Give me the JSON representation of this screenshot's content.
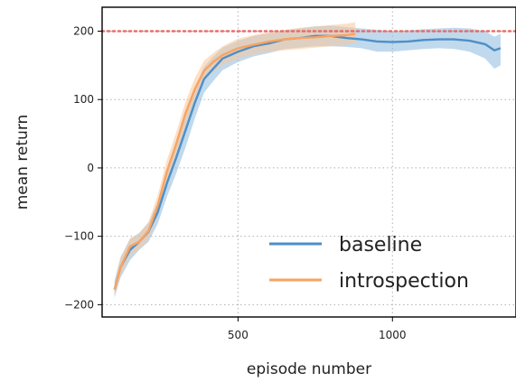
{
  "chart_data": {
    "type": "line",
    "xlabel": "episode number",
    "ylabel": "mean return",
    "xlim": [
      60,
      1400
    ],
    "ylim": [
      -218,
      235
    ],
    "xticks": [
      500,
      1000
    ],
    "yticks": [
      -200,
      -100,
      0,
      100,
      200
    ],
    "grid": true,
    "legend_position": "lower-right",
    "reference_line": {
      "y": 200,
      "color": "#e8625f",
      "style": "dotted"
    },
    "series": [
      {
        "name": "baseline",
        "color": "#4d8fc7",
        "band_color": "#8db9df",
        "x": [
          100,
          120,
          150,
          180,
          210,
          240,
          270,
          300,
          330,
          360,
          390,
          420,
          450,
          500,
          550,
          600,
          650,
          700,
          750,
          800,
          850,
          900,
          950,
          1000,
          1050,
          1100,
          1150,
          1200,
          1250,
          1300,
          1330,
          1350
        ],
        "y": [
          -178,
          -145,
          -120,
          -108,
          -93,
          -65,
          -22,
          15,
          55,
          95,
          130,
          145,
          160,
          170,
          178,
          182,
          188,
          190,
          193,
          193,
          190,
          188,
          185,
          184,
          185,
          187,
          188,
          188,
          186,
          181,
          172,
          175
        ],
        "lower": [
          -190,
          -160,
          -135,
          -120,
          -108,
          -82,
          -42,
          -8,
          30,
          72,
          110,
          127,
          143,
          155,
          163,
          168,
          174,
          176,
          178,
          178,
          177,
          175,
          170,
          170,
          172,
          174,
          175,
          174,
          170,
          160,
          145,
          150
        ],
        "upper": [
          -165,
          -130,
          -104,
          -95,
          -80,
          -50,
          -5,
          35,
          76,
          115,
          148,
          163,
          176,
          186,
          193,
          197,
          201,
          204,
          207,
          208,
          206,
          204,
          202,
          200,
          201,
          203,
          204,
          205,
          204,
          200,
          192,
          196
        ]
      },
      {
        "name": "introspection",
        "color": "#f9a360",
        "band_color": "#f8c79b",
        "x": [
          100,
          120,
          150,
          180,
          210,
          240,
          270,
          300,
          330,
          360,
          390,
          420,
          450,
          500,
          550,
          600,
          650,
          700,
          750,
          800,
          850,
          880
        ],
        "y": [
          -178,
          -145,
          -115,
          -108,
          -92,
          -55,
          -5,
          35,
          80,
          115,
          142,
          155,
          165,
          175,
          180,
          185,
          188,
          190,
          191,
          193,
          194,
          196
        ],
        "lower": [
          -188,
          -158,
          -128,
          -120,
          -105,
          -70,
          -22,
          18,
          62,
          99,
          128,
          141,
          150,
          160,
          166,
          170,
          172,
          174,
          176,
          178,
          180,
          183
        ],
        "upper": [
          -168,
          -132,
          -103,
          -96,
          -79,
          -40,
          12,
          52,
          97,
          131,
          157,
          168,
          178,
          189,
          194,
          199,
          202,
          205,
          207,
          209,
          211,
          213
        ]
      }
    ]
  }
}
